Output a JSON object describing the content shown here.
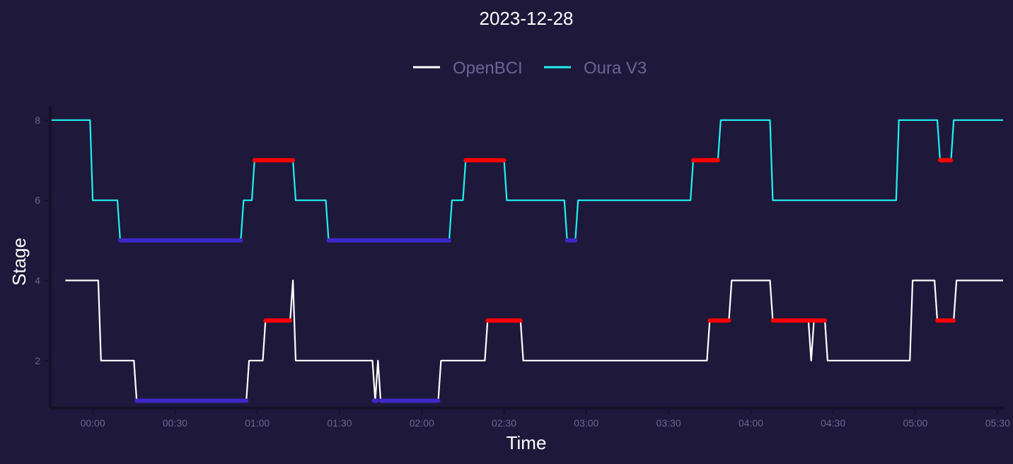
{
  "chart_data": {
    "type": "line",
    "title": "2023-12-28",
    "xlabel": "Time",
    "ylabel": "Stage",
    "x_unit": "clock time (hh:mm)",
    "xlim": [
      "-00:15",
      "05:32"
    ],
    "ylim": [
      0.85,
      8.35
    ],
    "x_ticks": [
      "00:00",
      "00:30",
      "01:00",
      "01:30",
      "02:00",
      "02:30",
      "03:00",
      "03:30",
      "04:00",
      "04:30",
      "05:00",
      "05:30"
    ],
    "y_ticks": [
      2,
      4,
      6,
      8
    ],
    "grid": false,
    "legend_position": "top",
    "colors": {
      "background": "#1e183a",
      "openbci": "#ffffff",
      "oura": "#1ff2f2",
      "highlight_red": "#ff0000",
      "highlight_blue": "#3c28c8",
      "text_muted": "#6b6496",
      "axis": "#15112a"
    },
    "series": [
      {
        "name": "OpenBCI",
        "color": "#ffffff",
        "points": [
          [
            "-00:10",
            4
          ],
          [
            "00:02",
            4
          ],
          [
            "00:03",
            2
          ],
          [
            "00:15",
            2
          ],
          [
            "00:16",
            1
          ],
          [
            "00:56",
            1
          ],
          [
            "00:57",
            2
          ],
          [
            "01:02",
            2
          ],
          [
            "01:03",
            3
          ],
          [
            "01:12",
            3
          ],
          [
            "01:13",
            4
          ],
          [
            "01:14",
            2
          ],
          [
            "01:42",
            2
          ],
          [
            "01:43",
            1
          ],
          [
            "01:44",
            2
          ],
          [
            "01:45",
            1
          ],
          [
            "02:06",
            1
          ],
          [
            "02:07",
            2
          ],
          [
            "02:23",
            2
          ],
          [
            "02:24",
            3
          ],
          [
            "02:36",
            3
          ],
          [
            "02:37",
            2
          ],
          [
            "03:44",
            2
          ],
          [
            "03:45",
            3
          ],
          [
            "03:52",
            3
          ],
          [
            "03:53",
            4
          ],
          [
            "04:07",
            4
          ],
          [
            "04:08",
            3
          ],
          [
            "04:21",
            3
          ],
          [
            "04:22",
            2
          ],
          [
            "04:23",
            3
          ],
          [
            "04:27",
            3
          ],
          [
            "04:28",
            2
          ],
          [
            "04:58",
            2
          ],
          [
            "04:59",
            4
          ],
          [
            "05:07",
            4
          ],
          [
            "05:08",
            3
          ],
          [
            "05:14",
            3
          ],
          [
            "05:15",
            4
          ],
          [
            "05:32",
            4
          ]
        ]
      },
      {
        "name": "Oura V3",
        "color": "#1ff2f2",
        "points": [
          [
            "-00:15",
            8
          ],
          [
            "-00:01",
            8
          ],
          [
            "00:00",
            6
          ],
          [
            "00:09",
            6
          ],
          [
            "00:10",
            5
          ],
          [
            "00:54",
            5
          ],
          [
            "00:55",
            6
          ],
          [
            "00:58",
            6
          ],
          [
            "00:59",
            7
          ],
          [
            "01:13",
            7
          ],
          [
            "01:14",
            6
          ],
          [
            "01:25",
            6
          ],
          [
            "01:26",
            5
          ],
          [
            "02:10",
            5
          ],
          [
            "02:11",
            6
          ],
          [
            "02:15",
            6
          ],
          [
            "02:16",
            7
          ],
          [
            "02:30",
            7
          ],
          [
            "02:31",
            6
          ],
          [
            "02:52",
            6
          ],
          [
            "02:53",
            5
          ],
          [
            "02:56",
            5
          ],
          [
            "02:57",
            6
          ],
          [
            "03:38",
            6
          ],
          [
            "03:39",
            7
          ],
          [
            "03:48",
            7
          ],
          [
            "03:49",
            8
          ],
          [
            "04:07",
            8
          ],
          [
            "04:08",
            6
          ],
          [
            "04:53",
            6
          ],
          [
            "04:54",
            8
          ],
          [
            "05:08",
            8
          ],
          [
            "05:09",
            7
          ],
          [
            "05:13",
            7
          ],
          [
            "05:14",
            8
          ],
          [
            "05:32",
            8
          ]
        ]
      }
    ],
    "highlights": [
      {
        "series": "OpenBCI",
        "value": 1,
        "color": "blue",
        "start": "00:16",
        "end": "00:56"
      },
      {
        "series": "OpenBCI",
        "value": 3,
        "color": "red",
        "start": "01:03",
        "end": "01:12"
      },
      {
        "series": "OpenBCI",
        "value": 1,
        "color": "blue",
        "start": "01:42.5",
        "end": "01:43.5"
      },
      {
        "series": "OpenBCI",
        "value": 1,
        "color": "blue",
        "start": "01:45",
        "end": "02:06"
      },
      {
        "series": "OpenBCI",
        "value": 3,
        "color": "red",
        "start": "02:24",
        "end": "02:36"
      },
      {
        "series": "OpenBCI",
        "value": 3,
        "color": "red",
        "start": "03:45",
        "end": "03:52"
      },
      {
        "series": "OpenBCI",
        "value": 3,
        "color": "red",
        "start": "04:08",
        "end": "04:27"
      },
      {
        "series": "OpenBCI",
        "value": 3,
        "color": "red",
        "start": "05:08",
        "end": "05:14"
      },
      {
        "series": "Oura V3",
        "value": 5,
        "color": "blue",
        "start": "00:10",
        "end": "00:54"
      },
      {
        "series": "Oura V3",
        "value": 7,
        "color": "red",
        "start": "00:59",
        "end": "01:13"
      },
      {
        "series": "Oura V3",
        "value": 5,
        "color": "blue",
        "start": "01:26",
        "end": "02:10"
      },
      {
        "series": "Oura V3",
        "value": 7,
        "color": "red",
        "start": "02:16",
        "end": "02:30"
      },
      {
        "series": "Oura V3",
        "value": 5,
        "color": "blue",
        "start": "02:53",
        "end": "02:56"
      },
      {
        "series": "Oura V3",
        "value": 7,
        "color": "red",
        "start": "03:39",
        "end": "03:48"
      },
      {
        "series": "Oura V3",
        "value": 7,
        "color": "red",
        "start": "05:09",
        "end": "05:13"
      }
    ]
  }
}
